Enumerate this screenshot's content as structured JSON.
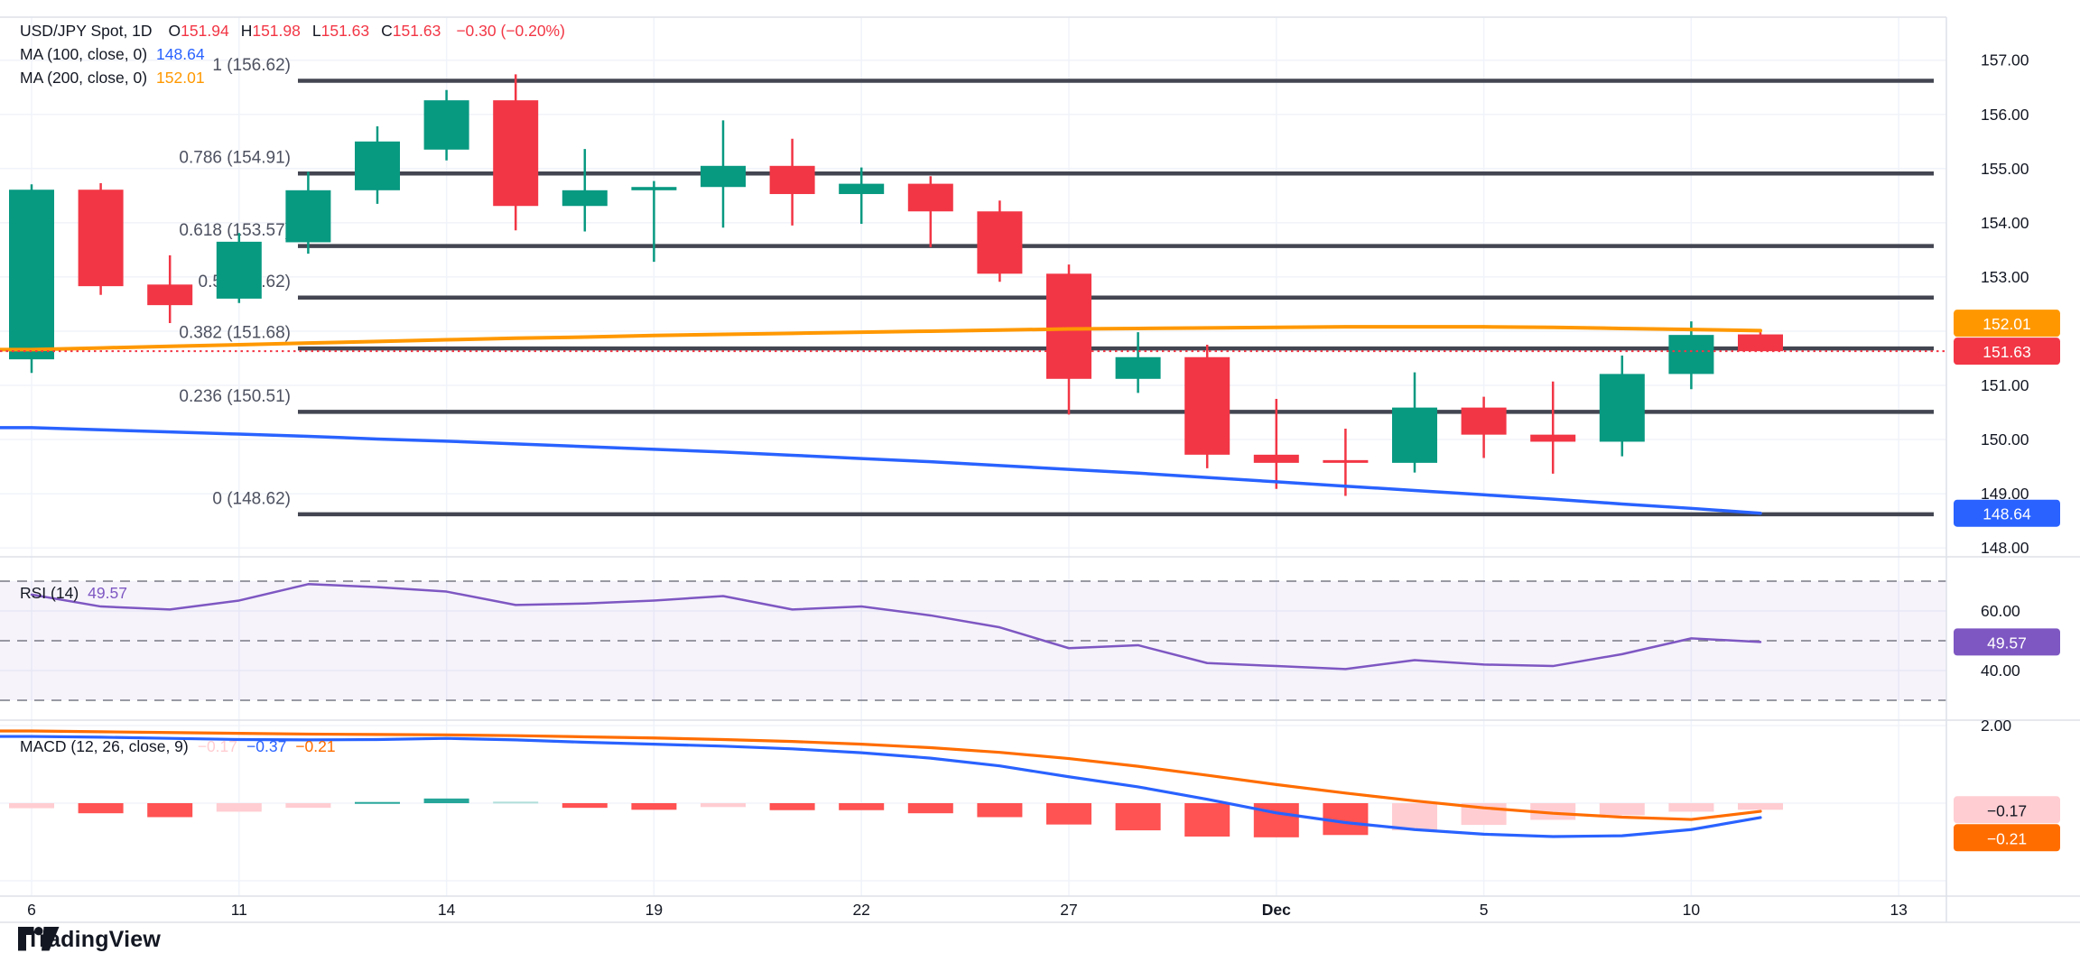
{
  "chart": {
    "symbol_line": {
      "title": "USD/JPY Spot, 1D",
      "o_label": "O",
      "o": "151.94",
      "h_label": "H",
      "h": "151.98",
      "l_label": "L",
      "l": "151.63",
      "c_label": "C",
      "c": "151.63",
      "change": "−0.30 (−0.20%)"
    },
    "ma100_legend": {
      "label": "MA (100, close, 0)",
      "value": "148.64"
    },
    "ma200_legend": {
      "label": "MA (200, close, 0)",
      "value": "152.01"
    },
    "rsi_legend": {
      "label": "RSI (14)",
      "value": "49.57"
    },
    "macd_legend": {
      "label": "MACD (12, 26, close, 9)",
      "hist": "−0.17",
      "macd": "−0.37",
      "signal": "−0.21"
    }
  },
  "watermark": "TradingView",
  "colors": {
    "up": "#089981",
    "down": "#f23645",
    "ma100": "#2962ff",
    "ma200": "#ff9800",
    "fib_line": "#434651",
    "fib_text": "#4d5160",
    "grid": "#f0f3fa",
    "separator": "#dde1e9",
    "axis_text": "#131722",
    "last_price_line": "#f23645",
    "rsi_line": "#7e57c2",
    "rsi_band": "#7e57c2",
    "rsi_dash": "#787b86",
    "macd_line": "#2962ff",
    "macd_signal": "#ff6d00",
    "hist_neg": "#ff5252",
    "hist_neg_light": "#ffcdd2",
    "hist_pos": "#26a69a",
    "hist_pos_light": "#b2dfdb",
    "badge_ma200": "#ff9800",
    "badge_last": "#f23645",
    "badge_ma100": "#2962ff",
    "badge_rsi": "#7e57c2",
    "badge_hist": "#ffcdd2",
    "badge_signal": "#ff6d00"
  },
  "chart_data": {
    "type": "candlestick+indicators",
    "title": "USD/JPY Spot, 1D",
    "price_ylim": [
      147.8,
      157.8
    ],
    "price_ticks": [
      "157.00",
      "156.00",
      "155.00",
      "154.00",
      "153.00",
      "151.00",
      "150.00",
      "149.00",
      "148.00"
    ],
    "price_gridlines": [
      157,
      156,
      155,
      154,
      153,
      152,
      151,
      150,
      149,
      148
    ],
    "x_labels": [
      {
        "label": "6",
        "bar": 0
      },
      {
        "label": "11",
        "bar": 3
      },
      {
        "label": "14",
        "bar": 6
      },
      {
        "label": "19",
        "bar": 9
      },
      {
        "label": "22",
        "bar": 12
      },
      {
        "label": "27",
        "bar": 15
      },
      {
        "label": "Dec",
        "bar": 18,
        "bold": true
      },
      {
        "label": "5",
        "bar": 21
      },
      {
        "label": "10",
        "bar": 24
      },
      {
        "label": "13",
        "bar": 27
      }
    ],
    "candles": [
      {
        "o": 151.48,
        "h": 154.71,
        "l": 151.23,
        "c": 154.61
      },
      {
        "o": 154.61,
        "h": 154.73,
        "l": 152.67,
        "c": 152.83
      },
      {
        "o": 152.86,
        "h": 153.4,
        "l": 152.15,
        "c": 152.48
      },
      {
        "o": 152.6,
        "h": 153.81,
        "l": 152.52,
        "c": 153.65
      },
      {
        "o": 153.64,
        "h": 154.94,
        "l": 153.43,
        "c": 154.6
      },
      {
        "o": 154.6,
        "h": 155.78,
        "l": 154.35,
        "c": 155.5
      },
      {
        "o": 155.35,
        "h": 156.45,
        "l": 155.15,
        "c": 156.26
      },
      {
        "o": 156.26,
        "h": 156.74,
        "l": 153.86,
        "c": 154.31
      },
      {
        "o": 154.31,
        "h": 155.36,
        "l": 153.84,
        "c": 154.6
      },
      {
        "o": 154.6,
        "h": 154.77,
        "l": 153.28,
        "c": 154.66
      },
      {
        "o": 154.66,
        "h": 155.89,
        "l": 153.91,
        "c": 155.05
      },
      {
        "o": 155.05,
        "h": 155.55,
        "l": 153.95,
        "c": 154.53
      },
      {
        "o": 154.53,
        "h": 155.02,
        "l": 153.98,
        "c": 154.72
      },
      {
        "o": 154.72,
        "h": 154.86,
        "l": 153.55,
        "c": 154.21
      },
      {
        "o": 154.21,
        "h": 154.41,
        "l": 152.91,
        "c": 153.06
      },
      {
        "o": 153.06,
        "h": 153.23,
        "l": 150.46,
        "c": 151.12
      },
      {
        "o": 151.12,
        "h": 151.98,
        "l": 150.86,
        "c": 151.52
      },
      {
        "o": 151.52,
        "h": 151.75,
        "l": 149.47,
        "c": 149.72
      },
      {
        "o": 149.72,
        "h": 150.75,
        "l": 149.09,
        "c": 149.57
      },
      {
        "o": 149.62,
        "h": 150.2,
        "l": 148.96,
        "c": 149.57
      },
      {
        "o": 149.57,
        "h": 151.24,
        "l": 149.39,
        "c": 150.59
      },
      {
        "o": 150.59,
        "h": 150.79,
        "l": 149.66,
        "c": 150.09
      },
      {
        "o": 150.09,
        "h": 151.07,
        "l": 149.37,
        "c": 149.96
      },
      {
        "o": 149.96,
        "h": 151.55,
        "l": 149.69,
        "c": 151.21
      },
      {
        "o": 151.21,
        "h": 152.18,
        "l": 150.93,
        "c": 151.93
      },
      {
        "o": 151.94,
        "h": 151.98,
        "l": 151.63,
        "c": 151.63
      }
    ],
    "ma100": [
      150.22,
      150.18,
      150.14,
      150.1,
      150.06,
      150.01,
      149.97,
      149.92,
      149.87,
      149.82,
      149.77,
      149.71,
      149.65,
      149.59,
      149.52,
      149.45,
      149.38,
      149.3,
      149.22,
      149.14,
      149.06,
      148.98,
      148.9,
      148.81,
      148.73,
      148.64
    ],
    "ma200": [
      151.66,
      151.69,
      151.72,
      151.75,
      151.78,
      151.81,
      151.84,
      151.87,
      151.89,
      151.92,
      151.94,
      151.96,
      151.98,
      152.0,
      152.02,
      152.04,
      152.05,
      152.06,
      152.07,
      152.08,
      152.08,
      152.08,
      152.07,
      152.05,
      152.03,
      152.01
    ],
    "last_price": 151.63,
    "ma100_last": 148.64,
    "ma200_last": 152.01,
    "fib_levels": [
      {
        "label": "1 (156.62)",
        "price": 156.62
      },
      {
        "label": "0.786 (154.91)",
        "price": 154.91
      },
      {
        "label": "0.618 (153.57)",
        "price": 153.57
      },
      {
        "label": "0.5 (152.62)",
        "price": 152.62
      },
      {
        "label": "0.382 (151.68)",
        "price": 151.68
      },
      {
        "label": "0.236 (150.51)",
        "price": 150.51
      },
      {
        "label": "0 (148.62)",
        "price": 148.62
      }
    ],
    "rsi": {
      "values": [
        65.5,
        61.5,
        60.5,
        63.5,
        69,
        68,
        66.5,
        62,
        62.5,
        63.5,
        65,
        60.5,
        61.5,
        58.5,
        54.5,
        47.5,
        48.5,
        42.5,
        41.5,
        40.5,
        43.5,
        42,
        41.5,
        45.5,
        50.8,
        49.57
      ],
      "last": 49.57,
      "upper_band": 70,
      "middle_band": 50,
      "lower_band": 30,
      "ticks": [
        "60.00",
        "40.00"
      ]
    },
    "macd": {
      "macd_line": [
        1.72,
        1.7,
        1.67,
        1.64,
        1.63,
        1.64,
        1.67,
        1.63,
        1.57,
        1.52,
        1.47,
        1.4,
        1.3,
        1.16,
        0.96,
        0.68,
        0.42,
        0.1,
        -0.25,
        -0.5,
        -0.68,
        -0.8,
        -0.86,
        -0.84,
        -0.68,
        -0.37
      ],
      "signal_line": [
        1.86,
        1.84,
        1.82,
        1.8,
        1.78,
        1.77,
        1.76,
        1.74,
        1.71,
        1.68,
        1.64,
        1.59,
        1.52,
        1.43,
        1.31,
        1.15,
        0.95,
        0.72,
        0.48,
        0.26,
        0.06,
        -0.12,
        -0.26,
        -0.36,
        -0.42,
        -0.21
      ],
      "histogram": [
        -0.13,
        -0.26,
        -0.36,
        -0.22,
        -0.12,
        0.03,
        0.12,
        0.04,
        -0.12,
        -0.17,
        -0.1,
        -0.18,
        -0.18,
        -0.26,
        -0.36,
        -0.55,
        -0.7,
        -0.86,
        -0.88,
        -0.82,
        -0.7,
        -0.56,
        -0.43,
        -0.31,
        -0.22,
        -0.17
      ],
      "histogram_tone": [
        "negLight",
        "neg",
        "neg",
        "negLight",
        "negLight",
        "pos",
        "pos",
        "posLight",
        "neg",
        "neg",
        "negLight",
        "neg",
        "neg",
        "neg",
        "neg",
        "neg",
        "neg",
        "neg",
        "neg",
        "neg",
        "negLight",
        "negLight",
        "negLight",
        "negLight",
        "negLight",
        "negLight"
      ],
      "macd_last": -0.37,
      "signal_last": -0.21,
      "hist_last": -0.17,
      "ticks": [
        "2.00"
      ]
    },
    "badges": {
      "ma200": "152.01",
      "last": "151.63",
      "ma100": "148.64",
      "rsi": "49.57",
      "hist": "−0.17",
      "signal": "−0.21"
    }
  }
}
